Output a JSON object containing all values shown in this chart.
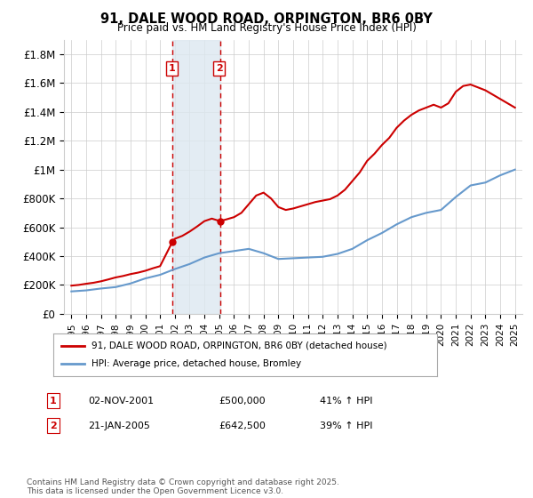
{
  "title": "91, DALE WOOD ROAD, ORPINGTON, BR6 0BY",
  "subtitle": "Price paid vs. HM Land Registry's House Price Index (HPI)",
  "legend_line1": "91, DALE WOOD ROAD, ORPINGTON, BR6 0BY (detached house)",
  "legend_line2": "HPI: Average price, detached house, Bromley",
  "footnote": "Contains HM Land Registry data © Crown copyright and database right 2025.\nThis data is licensed under the Open Government Licence v3.0.",
  "transaction1_label": "1",
  "transaction1_date": "02-NOV-2001",
  "transaction1_price": "£500,000",
  "transaction1_hpi": "41% ↑ HPI",
  "transaction2_label": "2",
  "transaction2_date": "21-JAN-2005",
  "transaction2_price": "£642,500",
  "transaction2_hpi": "39% ↑ HPI",
  "transaction1_x": 2001.84,
  "transaction1_y": 500000,
  "transaction2_x": 2005.05,
  "transaction2_y": 642500,
  "red_color": "#cc0000",
  "blue_color": "#6699cc",
  "shade_color": "#dde8f0",
  "background_color": "#ffffff",
  "grid_color": "#cccccc",
  "ylim": [
    0,
    1900000
  ],
  "xlim": [
    1994.5,
    2025.5
  ],
  "yticks": [
    0,
    200000,
    400000,
    600000,
    800000,
    1000000,
    1200000,
    1400000,
    1600000,
    1800000
  ],
  "ytick_labels": [
    "£0",
    "£200K",
    "£400K",
    "£600K",
    "£800K",
    "£1M",
    "£1.2M",
    "£1.4M",
    "£1.6M",
    "£1.8M"
  ],
  "xticks": [
    1995,
    1996,
    1997,
    1998,
    1999,
    2000,
    2001,
    2002,
    2003,
    2004,
    2005,
    2006,
    2007,
    2008,
    2009,
    2010,
    2011,
    2012,
    2013,
    2014,
    2015,
    2016,
    2017,
    2018,
    2019,
    2020,
    2021,
    2022,
    2023,
    2024,
    2025
  ],
  "hpi_years": [
    1995,
    1996,
    1997,
    1998,
    1999,
    2000,
    2001,
    2002,
    2003,
    2004,
    2005,
    2006,
    2007,
    2008,
    2009,
    2010,
    2011,
    2012,
    2013,
    2014,
    2015,
    2016,
    2017,
    2018,
    2019,
    2020,
    2021,
    2022,
    2023,
    2024,
    2025
  ],
  "hpi_values": [
    155000,
    162000,
    175000,
    185000,
    210000,
    245000,
    270000,
    310000,
    345000,
    390000,
    420000,
    435000,
    450000,
    420000,
    380000,
    385000,
    390000,
    395000,
    415000,
    450000,
    510000,
    560000,
    620000,
    670000,
    700000,
    720000,
    810000,
    890000,
    910000,
    960000,
    1000000
  ],
  "red_years": [
    1995.0,
    1995.5,
    1996.0,
    1996.5,
    1997.0,
    1997.5,
    1998.0,
    1998.5,
    1999.0,
    1999.5,
    2000.0,
    2000.5,
    2001.0,
    2001.84,
    2002.0,
    2002.5,
    2003.0,
    2003.5,
    2004.0,
    2004.5,
    2005.05,
    2005.5,
    2006.0,
    2006.5,
    2007.0,
    2007.5,
    2008.0,
    2008.5,
    2009.0,
    2009.5,
    2010.0,
    2010.5,
    2011.0,
    2011.5,
    2012.0,
    2012.5,
    2013.0,
    2013.5,
    2014.0,
    2014.5,
    2015.0,
    2015.5,
    2016.0,
    2016.5,
    2017.0,
    2017.5,
    2018.0,
    2018.5,
    2019.0,
    2019.5,
    2020.0,
    2020.5,
    2021.0,
    2021.5,
    2022.0,
    2022.5,
    2023.0,
    2023.5,
    2024.0,
    2024.5,
    2025.0
  ],
  "red_values": [
    195000,
    200000,
    208000,
    215000,
    225000,
    238000,
    252000,
    262000,
    275000,
    285000,
    298000,
    315000,
    330000,
    500000,
    520000,
    540000,
    570000,
    605000,
    642500,
    660000,
    642500,
    655000,
    670000,
    700000,
    760000,
    820000,
    840000,
    800000,
    740000,
    720000,
    730000,
    745000,
    760000,
    775000,
    785000,
    795000,
    820000,
    860000,
    920000,
    980000,
    1060000,
    1110000,
    1170000,
    1220000,
    1290000,
    1340000,
    1380000,
    1410000,
    1430000,
    1450000,
    1430000,
    1460000,
    1540000,
    1580000,
    1590000,
    1570000,
    1550000,
    1520000,
    1490000,
    1460000,
    1430000
  ]
}
